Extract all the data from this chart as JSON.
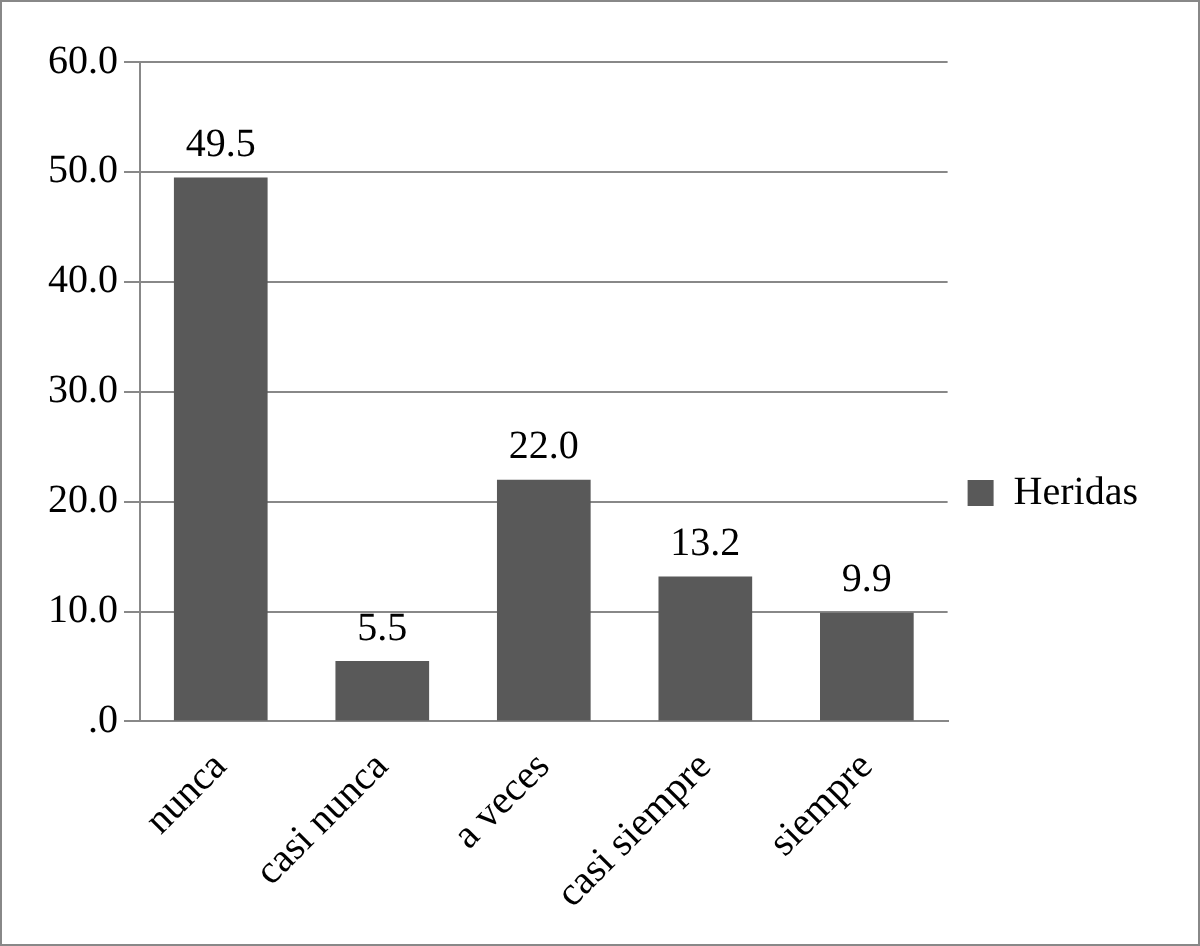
{
  "chart_data": {
    "type": "bar",
    "categories": [
      "nunca",
      "casi nunca",
      "a veces",
      "casi siempre",
      "siempre"
    ],
    "series": [
      {
        "name": "Heridas",
        "color": "#595959",
        "values": [
          49.5,
          5.5,
          22.0,
          13.2,
          9.9
        ]
      }
    ],
    "value_labels": [
      "49.5",
      "5.5",
      "22.0",
      "13.2",
      "9.9"
    ],
    "ylim": [
      0,
      60
    ],
    "yticks": [
      {
        "value": 0,
        "label": ".0"
      },
      {
        "value": 10,
        "label": "10.0"
      },
      {
        "value": 20,
        "label": "20.0"
      },
      {
        "value": 30,
        "label": "30.0"
      },
      {
        "value": 40,
        "label": "40.0"
      },
      {
        "value": 50,
        "label": "50.0"
      },
      {
        "value": 60,
        "label": "60.0"
      }
    ],
    "grid": "y",
    "legend": "right"
  }
}
